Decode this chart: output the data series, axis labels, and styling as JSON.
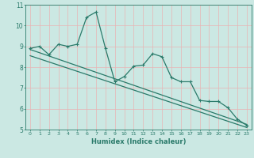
{
  "xlabel": "Humidex (Indice chaleur)",
  "ylabel": "",
  "bg_color": "#cbe8e3",
  "grid_color": "#e8b4b4",
  "line_color": "#2a7a6a",
  "xlim": [
    -0.5,
    23.5
  ],
  "ylim": [
    5,
    11
  ],
  "yticks": [
    5,
    6,
    7,
    8,
    9,
    10,
    11
  ],
  "xticks": [
    0,
    1,
    2,
    3,
    4,
    5,
    6,
    7,
    8,
    9,
    10,
    11,
    12,
    13,
    14,
    15,
    16,
    17,
    18,
    19,
    20,
    21,
    22,
    23
  ],
  "curve_x": [
    0,
    1,
    2,
    3,
    4,
    5,
    6,
    7,
    8,
    9,
    10,
    11,
    12,
    13,
    14,
    15,
    16,
    17,
    18,
    19,
    20,
    21,
    22,
    23
  ],
  "curve_y": [
    8.9,
    9.0,
    8.6,
    9.1,
    9.0,
    9.1,
    10.4,
    10.65,
    8.9,
    7.3,
    7.55,
    8.05,
    8.1,
    8.65,
    8.5,
    7.5,
    7.3,
    7.3,
    6.4,
    6.35,
    6.35,
    6.05,
    5.5,
    5.2
  ],
  "line1_x": [
    0,
    23
  ],
  "line1_y": [
    8.85,
    5.25
  ],
  "line2_x": [
    0,
    23
  ],
  "line2_y": [
    8.55,
    5.1
  ],
  "marker_size": 2.5,
  "lw": 0.9
}
